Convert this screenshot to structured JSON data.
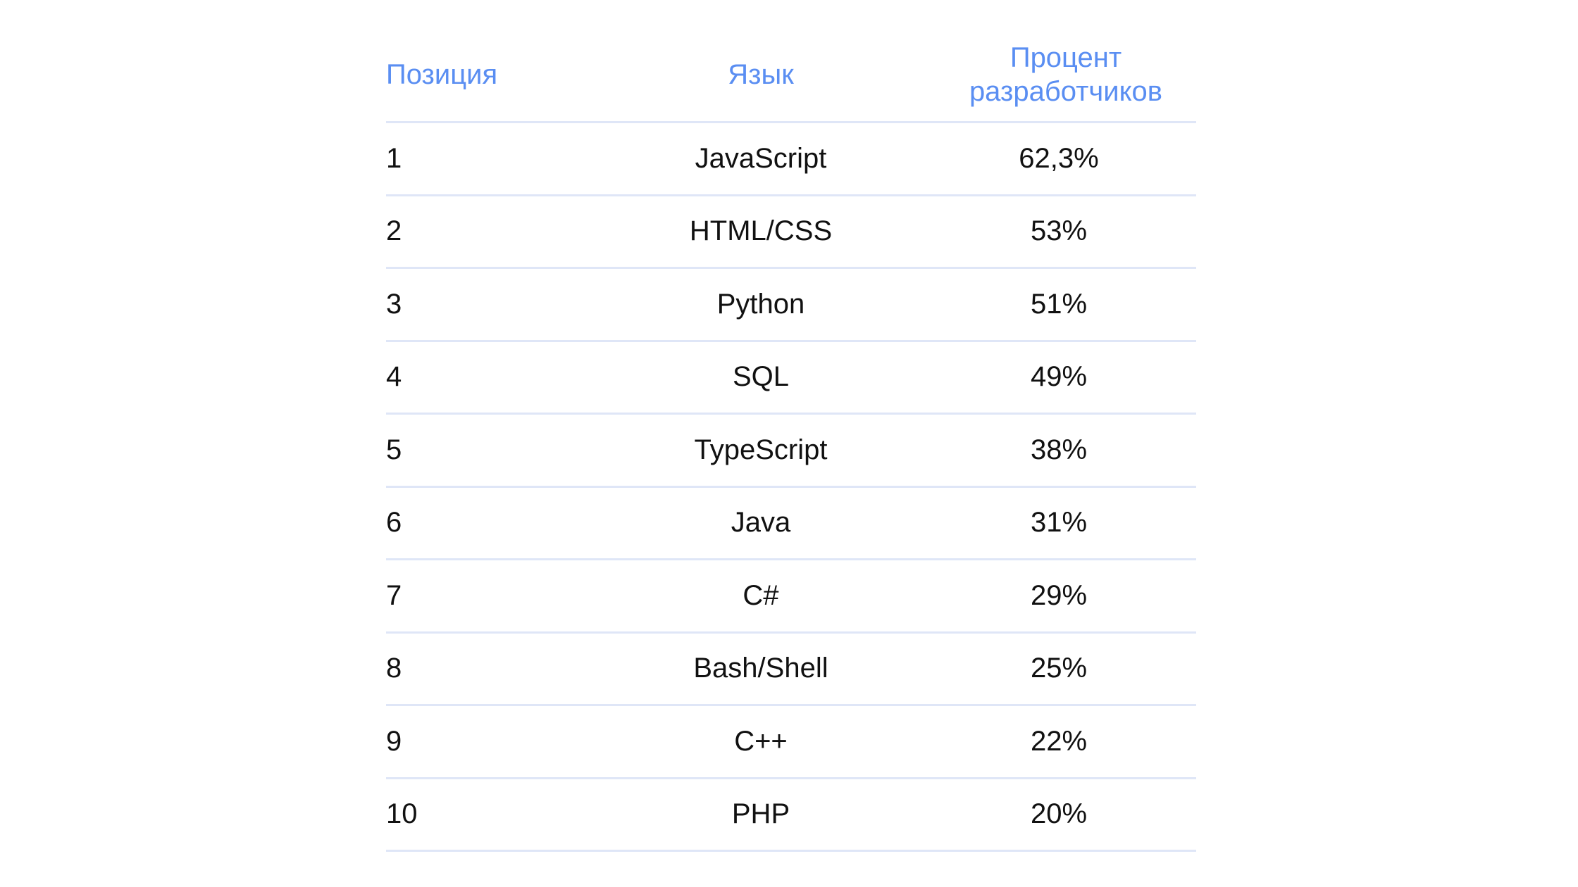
{
  "chart_data": {
    "type": "table",
    "columns": [
      "Позиция",
      "Язык",
      "Процент разработчиков"
    ],
    "header_color": "#5a8ef2",
    "rule_color": "#dfe6f7",
    "rows": [
      {
        "position": "1",
        "language": "JavaScript",
        "percent": "62,3%"
      },
      {
        "position": "2",
        "language": "HTML/CSS",
        "percent": "53%"
      },
      {
        "position": "3",
        "language": "Python",
        "percent": "51%"
      },
      {
        "position": "4",
        "language": "SQL",
        "percent": "49%"
      },
      {
        "position": "5",
        "language": "TypeScript",
        "percent": "38%"
      },
      {
        "position": "6",
        "language": "Java",
        "percent": "31%"
      },
      {
        "position": "7",
        "language": "C#",
        "percent": "29%"
      },
      {
        "position": "8",
        "language": "Bash/Shell",
        "percent": "25%"
      },
      {
        "position": "9",
        "language": "C++",
        "percent": "22%"
      },
      {
        "position": "10",
        "language": "PHP",
        "percent": "20%"
      }
    ]
  }
}
